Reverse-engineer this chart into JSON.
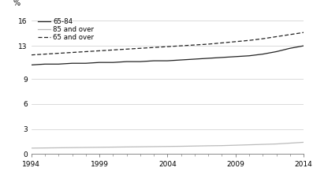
{
  "years": [
    1994,
    1995,
    1996,
    1997,
    1998,
    1999,
    2000,
    2001,
    2002,
    2003,
    2004,
    2005,
    2006,
    2007,
    2008,
    2009,
    2010,
    2011,
    2012,
    2013,
    2014
  ],
  "series_65_84": [
    10.7,
    10.8,
    10.8,
    10.9,
    10.9,
    11.0,
    11.0,
    11.1,
    11.1,
    11.2,
    11.2,
    11.3,
    11.4,
    11.5,
    11.6,
    11.7,
    11.8,
    12.0,
    12.3,
    12.7,
    13.0
  ],
  "series_85_over": [
    0.7,
    0.72,
    0.74,
    0.76,
    0.78,
    0.8,
    0.82,
    0.84,
    0.86,
    0.88,
    0.9,
    0.92,
    0.95,
    0.98,
    1.0,
    1.05,
    1.1,
    1.15,
    1.2,
    1.3,
    1.4
  ],
  "series_65_over": [
    11.9,
    12.0,
    12.1,
    12.2,
    12.3,
    12.4,
    12.5,
    12.6,
    12.7,
    12.8,
    12.9,
    13.0,
    13.1,
    13.2,
    13.35,
    13.5,
    13.65,
    13.85,
    14.1,
    14.35,
    14.6
  ],
  "color_65_84": "#222222",
  "color_85_over": "#bbbbbb",
  "color_65_over": "#222222",
  "ylabel": "%",
  "ylim": [
    0,
    17
  ],
  "yticks": [
    0,
    3,
    6,
    9,
    13,
    16
  ],
  "ytick_labels": [
    "0",
    "3",
    "6",
    "9",
    "13",
    "16"
  ],
  "xticks": [
    1994,
    1999,
    2004,
    2009,
    2014
  ],
  "legend_labels": [
    "65-84",
    "85 and over",
    "65 and over"
  ],
  "background_color": "#ffffff"
}
